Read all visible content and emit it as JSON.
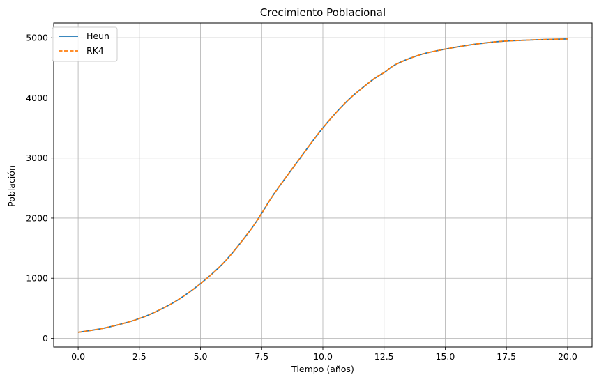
{
  "chart_data": {
    "type": "line",
    "title": "Crecimiento Poblacional",
    "xlabel": "Tiempo (años)",
    "ylabel": "Población",
    "xlim": [
      -1.0,
      21.0
    ],
    "ylim": [
      -145,
      5245
    ],
    "x_ticks": [
      0.0,
      2.5,
      5.0,
      7.5,
      10.0,
      12.5,
      15.0,
      17.5,
      20.0
    ],
    "x_tick_labels": [
      "0.0",
      "2.5",
      "5.0",
      "7.5",
      "10.0",
      "12.5",
      "15.0",
      "17.5",
      "20.0"
    ],
    "y_ticks": [
      0,
      1000,
      2000,
      3000,
      4000,
      5000
    ],
    "y_tick_labels": [
      "0",
      "1000",
      "2000",
      "3000",
      "4000",
      "5000"
    ],
    "grid": true,
    "legend_position": "top-left",
    "series": [
      {
        "name": "Heun",
        "color": "#1f77b4",
        "style": "solid",
        "x": [
          0,
          1,
          2,
          2.5,
          3,
          4,
          5,
          6,
          7,
          7.5,
          8,
          9,
          10,
          11,
          12,
          12.5,
          13,
          14,
          15,
          16,
          17,
          17.5,
          18,
          19,
          20
        ],
        "y": [
          100,
          165,
          265,
          330,
          410,
          620,
          910,
          1280,
          1780,
          2080,
          2400,
          2960,
          3500,
          3950,
          4290,
          4420,
          4560,
          4720,
          4810,
          4880,
          4930,
          4945,
          4955,
          4970,
          4980
        ]
      },
      {
        "name": "RK4",
        "color": "#ff7f0e",
        "style": "dashed",
        "x": [
          0,
          1,
          2,
          2.5,
          3,
          4,
          5,
          6,
          7,
          7.5,
          8,
          9,
          10,
          11,
          12,
          12.5,
          13,
          14,
          15,
          16,
          17,
          17.5,
          18,
          19,
          20
        ],
        "y": [
          100,
          165,
          265,
          330,
          410,
          620,
          910,
          1280,
          1780,
          2080,
          2400,
          2960,
          3500,
          3950,
          4290,
          4420,
          4560,
          4720,
          4810,
          4880,
          4930,
          4945,
          4955,
          4970,
          4980
        ]
      }
    ]
  }
}
